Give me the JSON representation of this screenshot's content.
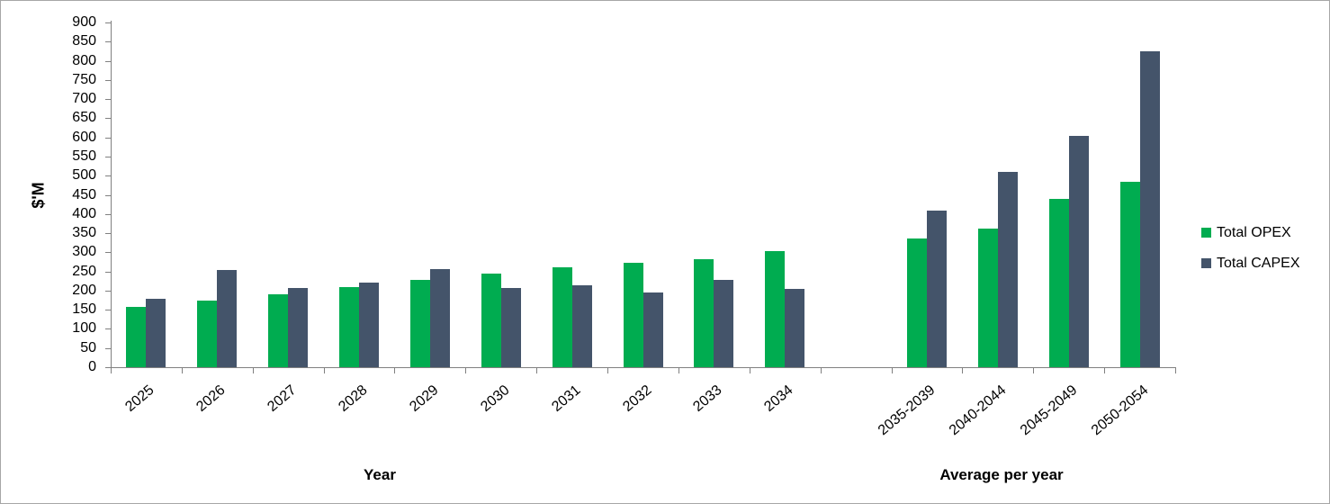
{
  "chart_data": {
    "type": "bar",
    "title": "",
    "ylabel": "$'M",
    "xlabel_left": "Year",
    "xlabel_right": "Average per year",
    "ylim": [
      0,
      900
    ],
    "ytick_step": 50,
    "grid": false,
    "legend_position": "right",
    "categories": [
      "2025",
      "2026",
      "2027",
      "2028",
      "2029",
      "2030",
      "2031",
      "2032",
      "2033",
      "2034",
      "",
      "2035-2039",
      "2040-2044",
      "2045-2049",
      "2050-2054"
    ],
    "series": [
      {
        "name": "Total OPEX",
        "color": "#00AC50",
        "values": [
          158,
          173,
          190,
          208,
          227,
          244,
          261,
          272,
          283,
          302,
          null,
          335,
          361,
          440,
          483
        ]
      },
      {
        "name": "Total CAPEX",
        "color": "#44546A",
        "values": [
          178,
          253,
          206,
          221,
          255,
          206,
          215,
          195,
          227,
          205,
          null,
          408,
          509,
          605,
          825
        ]
      }
    ]
  },
  "colors": {
    "axis": "#808080",
    "text": "#000000",
    "border": "#a6a6a6",
    "background": "#ffffff"
  }
}
